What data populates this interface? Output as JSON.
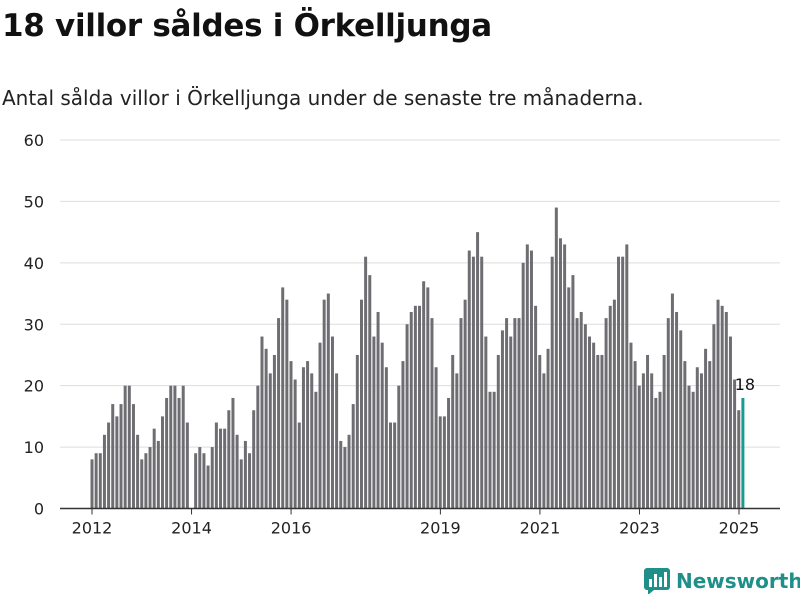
{
  "header": {
    "title": "18 villor såldes i Örkelljunga",
    "subtitle": "Antal sålda villor i Örkelljunga under de senaste tre månaderna."
  },
  "brand": {
    "name": "Newsworthy",
    "icon": "newsworthy-logo-icon",
    "color": "#1f8f8a"
  },
  "colors": {
    "bar": "#6e6d71",
    "highlight": "#1a9b91",
    "grid": "#dddddd"
  },
  "chart_data": {
    "type": "bar",
    "title": "18 villor såldes i Örkelljunga",
    "ylim": [
      0,
      60
    ],
    "yticks": [
      0,
      10,
      20,
      30,
      40,
      50,
      60
    ],
    "xticks": [
      {
        "label": "2012",
        "x": 2012.0
      },
      {
        "label": "2014",
        "x": 2014.0
      },
      {
        "label": "2016",
        "x": 2016.0
      },
      {
        "label": "2019",
        "x": 2019.0
      },
      {
        "label": "2021",
        "x": 2021.0
      },
      {
        "label": "2023",
        "x": 2023.0
      },
      {
        "label": "2025",
        "x": 2025.0
      }
    ],
    "x_start": 2012.0,
    "x_step": 0.0833,
    "values": [
      8,
      9,
      9,
      12,
      14,
      17,
      15,
      17,
      20,
      20,
      17,
      12,
      8,
      9,
      10,
      13,
      11,
      15,
      18,
      20,
      20,
      18,
      20,
      14,
      0,
      9,
      10,
      9,
      7,
      10,
      14,
      13,
      13,
      16,
      18,
      12,
      8,
      11,
      9,
      16,
      20,
      28,
      26,
      22,
      25,
      31,
      36,
      34,
      24,
      21,
      14,
      23,
      24,
      22,
      19,
      27,
      34,
      35,
      28,
      22,
      11,
      10,
      12,
      17,
      25,
      34,
      41,
      38,
      28,
      32,
      27,
      23,
      14,
      14,
      20,
      24,
      30,
      32,
      33,
      33,
      37,
      36,
      31,
      23,
      15,
      15,
      18,
      25,
      22,
      31,
      34,
      42,
      41,
      45,
      41,
      28,
      19,
      19,
      25,
      29,
      31,
      28,
      31,
      31,
      40,
      43,
      42,
      33,
      25,
      22,
      26,
      41,
      49,
      44,
      43,
      36,
      38,
      31,
      32,
      30,
      28,
      27,
      25,
      25,
      31,
      33,
      34,
      41,
      41,
      43,
      27,
      24,
      20,
      22,
      25,
      22,
      18,
      19,
      25,
      31,
      35,
      32,
      29,
      24,
      20,
      19,
      23,
      22,
      26,
      24,
      30,
      34,
      33,
      32,
      28,
      21,
      16,
      18
    ],
    "highlight_last": true,
    "annotations": [
      {
        "label": "18",
        "value": 18
      }
    ]
  }
}
